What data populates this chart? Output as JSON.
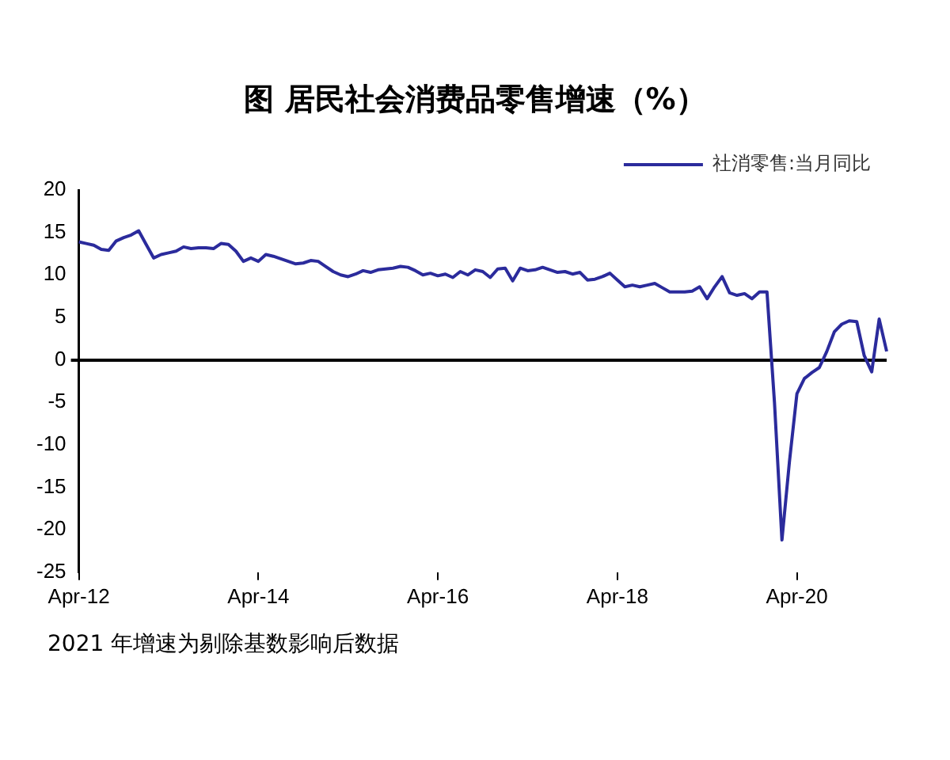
{
  "chart_data": {
    "type": "line",
    "title": "图 居民社会消费品零售增速（%）",
    "categories": [
      "Apr-12",
      null,
      null,
      null,
      null,
      null,
      null,
      null,
      null,
      null,
      null,
      null,
      null,
      null,
      null,
      null,
      null,
      null,
      null,
      null,
      null,
      null,
      null,
      null,
      "Apr-14",
      null,
      null,
      null,
      null,
      null,
      null,
      null,
      null,
      null,
      null,
      null,
      null,
      null,
      null,
      null,
      null,
      null,
      null,
      null,
      null,
      null,
      null,
      null,
      "Apr-16",
      null,
      null,
      null,
      null,
      null,
      null,
      null,
      null,
      null,
      null,
      null,
      null,
      null,
      null,
      null,
      null,
      null,
      null,
      null,
      null,
      null,
      null,
      null,
      "Apr-18",
      null,
      null,
      null,
      null,
      null,
      null,
      null,
      null,
      null,
      null,
      null,
      null,
      null,
      null,
      null,
      null,
      null,
      null,
      null,
      null,
      null,
      null,
      null,
      "Apr-20",
      null,
      null,
      null,
      null,
      null,
      null,
      null,
      null,
      null,
      null,
      null,
      null
    ],
    "series": [
      {
        "name": "社消零售:当月同比",
        "color": "#2b2b9c",
        "values": [
          13.9,
          13.7,
          13.5,
          13.0,
          12.9,
          14.0,
          14.4,
          14.7,
          15.2,
          13.6,
          12.0,
          12.4,
          12.6,
          12.8,
          13.3,
          13.1,
          13.2,
          13.2,
          13.1,
          13.7,
          13.6,
          12.8,
          11.6,
          12.0,
          11.6,
          12.4,
          12.2,
          11.9,
          11.6,
          11.3,
          11.4,
          11.7,
          11.6,
          11.0,
          10.4,
          10.0,
          9.8,
          10.1,
          10.5,
          10.3,
          10.6,
          10.7,
          10.8,
          11.0,
          10.9,
          10.5,
          10.0,
          10.2,
          9.9,
          10.1,
          9.7,
          10.4,
          10.0,
          10.6,
          10.4,
          9.7,
          10.7,
          10.8,
          9.3,
          10.8,
          10.5,
          10.6,
          10.9,
          10.6,
          10.3,
          10.4,
          10.1,
          10.3,
          9.4,
          9.5,
          9.8,
          10.2,
          9.4,
          8.6,
          8.8,
          8.6,
          8.8,
          9.0,
          8.5,
          8.0,
          8.0,
          8.0,
          8.1,
          8.6,
          7.2,
          8.6,
          9.8,
          7.9,
          7.6,
          7.8,
          7.2,
          8.0,
          8.0,
          -5,
          -21.2,
          -12,
          -4,
          -2.2,
          -1.5,
          -0.9,
          1.0,
          3.3,
          4.2,
          4.6,
          4.5,
          0.5,
          -1.4,
          4.8,
          1.0
        ]
      }
    ],
    "ylim": [
      -25,
      20
    ],
    "yticks": [
      -25,
      -20,
      -15,
      -10,
      -5,
      0,
      5,
      10,
      15,
      20
    ],
    "legend": "top right",
    "marker": "none",
    "line_style": "solid",
    "annotations": [
      "2021 年增速为剔除基数影响后数据"
    ]
  }
}
